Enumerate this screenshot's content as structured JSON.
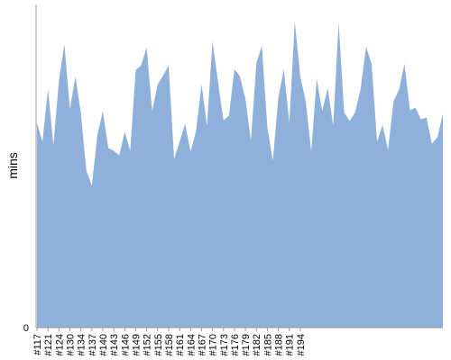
{
  "chart_data": {
    "type": "area",
    "xlabel": "",
    "ylabel": "mins",
    "ylim": [
      0,
      360
    ],
    "grid": false,
    "legend": "none",
    "fill_color": "#8eb0db",
    "axis_color": "#999999",
    "y_ticks": [
      {
        "value": 0,
        "label": "0"
      }
    ],
    "x_tick_labels": [
      "#117",
      "#121",
      "#124",
      "#130",
      "#134",
      "#137",
      "#140",
      "#143",
      "#146",
      "#149",
      "#152",
      "#155",
      "#158",
      "#161",
      "#164",
      "#167",
      "#170",
      "#173",
      "#176",
      "#179",
      "#182",
      "#185",
      "#188",
      "#191",
      "#194"
    ],
    "x_tick_index": [
      0,
      2,
      4,
      6,
      8,
      10,
      12,
      14,
      16,
      18,
      20,
      22,
      24,
      26,
      28,
      30,
      32,
      34,
      36,
      38,
      40,
      42,
      44,
      46,
      48
    ],
    "values": [
      228,
      207,
      266,
      203,
      275,
      316,
      243,
      280,
      239,
      175,
      158,
      214,
      241,
      200,
      197,
      192,
      218,
      197,
      287,
      292,
      312,
      241,
      271,
      281,
      292,
      188,
      207,
      227,
      196,
      219,
      271,
      225,
      319,
      274,
      231,
      236,
      288,
      280,
      255,
      208,
      295,
      314,
      223,
      186,
      256,
      288,
      228,
      341,
      280,
      252,
      196,
      277,
      241,
      267,
      225,
      340,
      240,
      230,
      240,
      266,
      313,
      294,
      207,
      226,
      198,
      252,
      265,
      294,
      242,
      245,
      232,
      234,
      205,
      212,
      238
    ],
    "series": [
      {
        "values": []
      }
    ]
  }
}
